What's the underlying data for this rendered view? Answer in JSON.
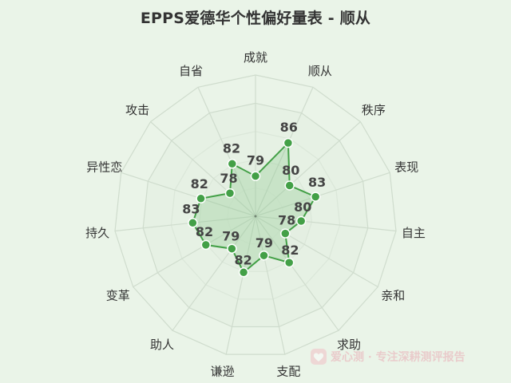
{
  "chart_data": {
    "type": "radar",
    "title": "EPPS爱德华个性偏好量表 - 顺从",
    "axes": [
      "成就",
      "顺从",
      "秩序",
      "表现",
      "自主",
      "亲和",
      "求助",
      "支配",
      "谦逊",
      "助人",
      "变革",
      "持久",
      "异性恋",
      "攻击",
      "自省"
    ],
    "values": [
      79,
      86,
      80,
      83,
      80,
      78,
      82,
      79,
      82,
      79,
      82,
      83,
      82,
      78,
      82
    ],
    "rlim": [
      0,
      100
    ],
    "grid": true,
    "legend": "none",
    "colors": {
      "line": "#43a047",
      "fill": "#66bb6a",
      "marker": "#43a047",
      "marker_stroke": "#ffffff",
      "grid": "#cfdccd",
      "background": "#eaf4e8"
    }
  },
  "watermark": {
    "text": "爱心测 · 专注深耕测评报告"
  }
}
